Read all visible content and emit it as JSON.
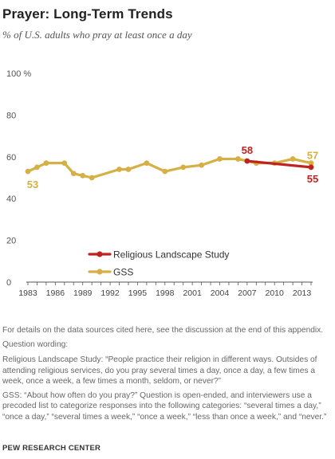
{
  "title": "Prayer: Long-Term Trends",
  "subtitle": "% of U.S. adults who pray at least once a day",
  "colors": {
    "rls": "#c0231f",
    "gss": "#d6b044",
    "axis": "#555555",
    "grid": "#d9d9d9"
  },
  "chart_data": {
    "type": "line",
    "title": "Prayer: Long-Term Trends",
    "subtitle": "% of U.S. adults who pray at least once a day",
    "xlabel": "",
    "ylabel": "",
    "xlim": [
      1983,
      2014
    ],
    "ylim": [
      0,
      100
    ],
    "y_ticks": [
      0,
      20,
      40,
      60,
      80,
      100
    ],
    "y_tick_labels": [
      "0",
      "20",
      "40",
      "60",
      "80",
      "100 %"
    ],
    "x_ticks": [
      1983,
      1986,
      1989,
      1992,
      1995,
      1998,
      2001,
      2004,
      2007,
      2010,
      2013
    ],
    "grid": false,
    "legend": "bottom-center",
    "series": [
      {
        "name": "Religious Landscape Study",
        "color": "#c0231f",
        "x": [
          2007,
          2014
        ],
        "y": [
          58,
          55
        ],
        "end_labels": [
          "58",
          "55"
        ]
      },
      {
        "name": "GSS",
        "color": "#d6b044",
        "x": [
          1983,
          1984,
          1985,
          1987,
          1988,
          1989,
          1990,
          1993,
          1994,
          1996,
          1998,
          2000,
          2002,
          2004,
          2006,
          2008,
          2010,
          2012,
          2014
        ],
        "y": [
          53,
          55,
          57,
          57,
          52,
          51,
          50,
          54,
          54,
          57,
          53,
          55,
          56,
          59,
          59,
          57,
          57,
          59,
          57
        ],
        "end_labels": [
          "53",
          "57"
        ]
      }
    ]
  },
  "notes": {
    "details": "For details on the data sources cited here, see the discussion at the end of this appendix.",
    "question_wording": "Question wording:",
    "rls_question": "Religious Landscape Study: “People practice their religion in different ways. Outsides of attending religious services, do you pray several times a day, once a day, a few times a week, once a week, a few times a month, seldom, or never?”",
    "gss_question": "GSS: “About how often do you pray?” Question is open-ended, and interviewers use a precoded list to categorize responses into the following categories: “several times a day,” “once a day,” “several times a week,” “once a week,” “less than once a week,” and “never.”"
  },
  "source": "PEW RESEARCH CENTER"
}
